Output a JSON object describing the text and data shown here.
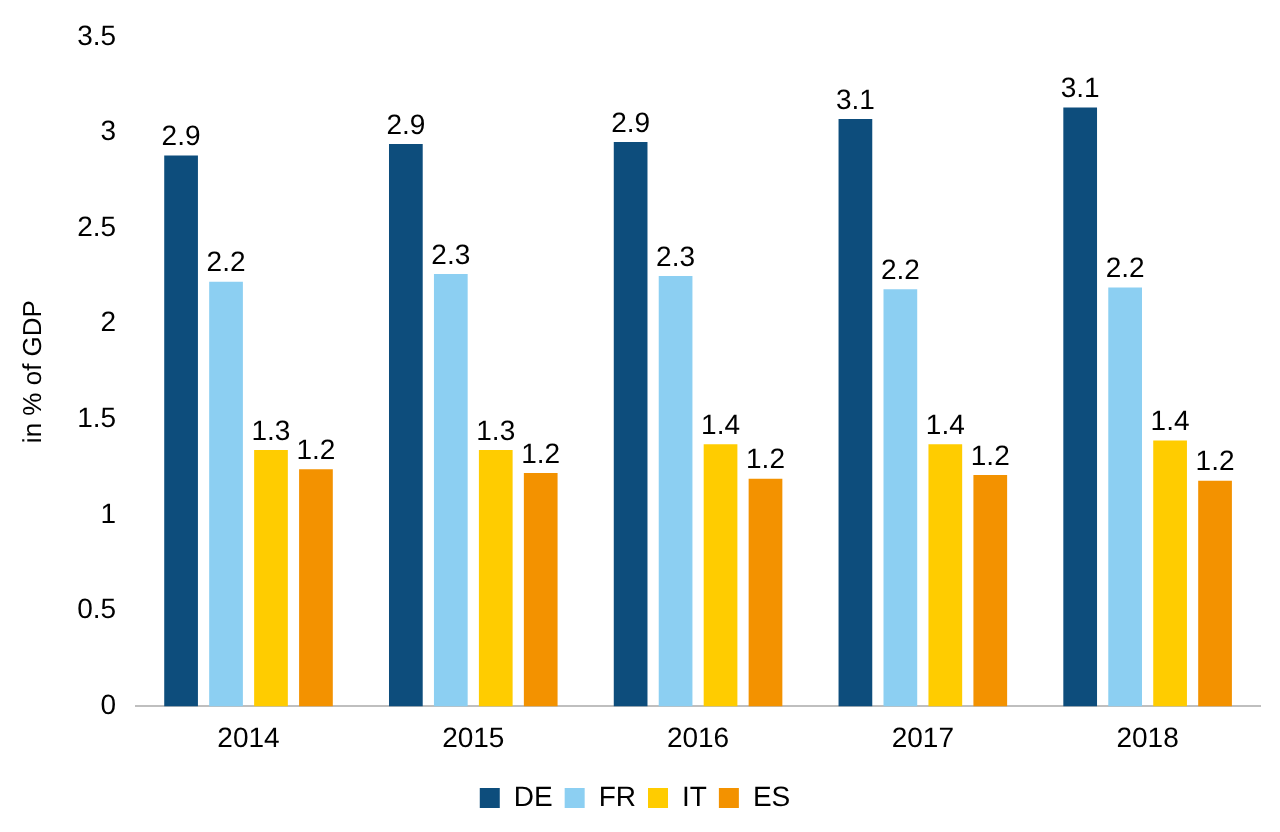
{
  "chart_data": {
    "type": "bar",
    "ylabel": "in % of GDP",
    "categories": [
      "2014",
      "2015",
      "2016",
      "2017",
      "2018"
    ],
    "series": [
      {
        "name": "DE",
        "color": "#0d4d7c",
        "values": [
          2.88,
          2.94,
          2.95,
          3.07,
          3.13
        ],
        "value_labels": [
          "2.9",
          "2.9",
          "2.9",
          "3.1",
          "3.1"
        ]
      },
      {
        "name": "FR",
        "color": "#8ccff2",
        "values": [
          2.22,
          2.26,
          2.25,
          2.18,
          2.19
        ],
        "value_labels": [
          "2.2",
          "2.3",
          "2.3",
          "2.2",
          "2.2"
        ]
      },
      {
        "name": "IT",
        "color": "#ffcc00",
        "values": [
          1.34,
          1.34,
          1.37,
          1.37,
          1.39
        ],
        "value_labels": [
          "1.3",
          "1.3",
          "1.4",
          "1.4",
          "1.4"
        ]
      },
      {
        "name": "ES",
        "color": "#f39200",
        "values": [
          1.24,
          1.22,
          1.19,
          1.21,
          1.18
        ],
        "value_labels": [
          "1.2",
          "1.2",
          "1.2",
          "1.2",
          "1.2"
        ]
      }
    ],
    "ylim": [
      0,
      3.5
    ],
    "yticks": [
      0,
      0.5,
      1,
      1.5,
      2,
      2.5,
      3,
      3.5
    ],
    "grid": false,
    "legend": "bottom"
  }
}
